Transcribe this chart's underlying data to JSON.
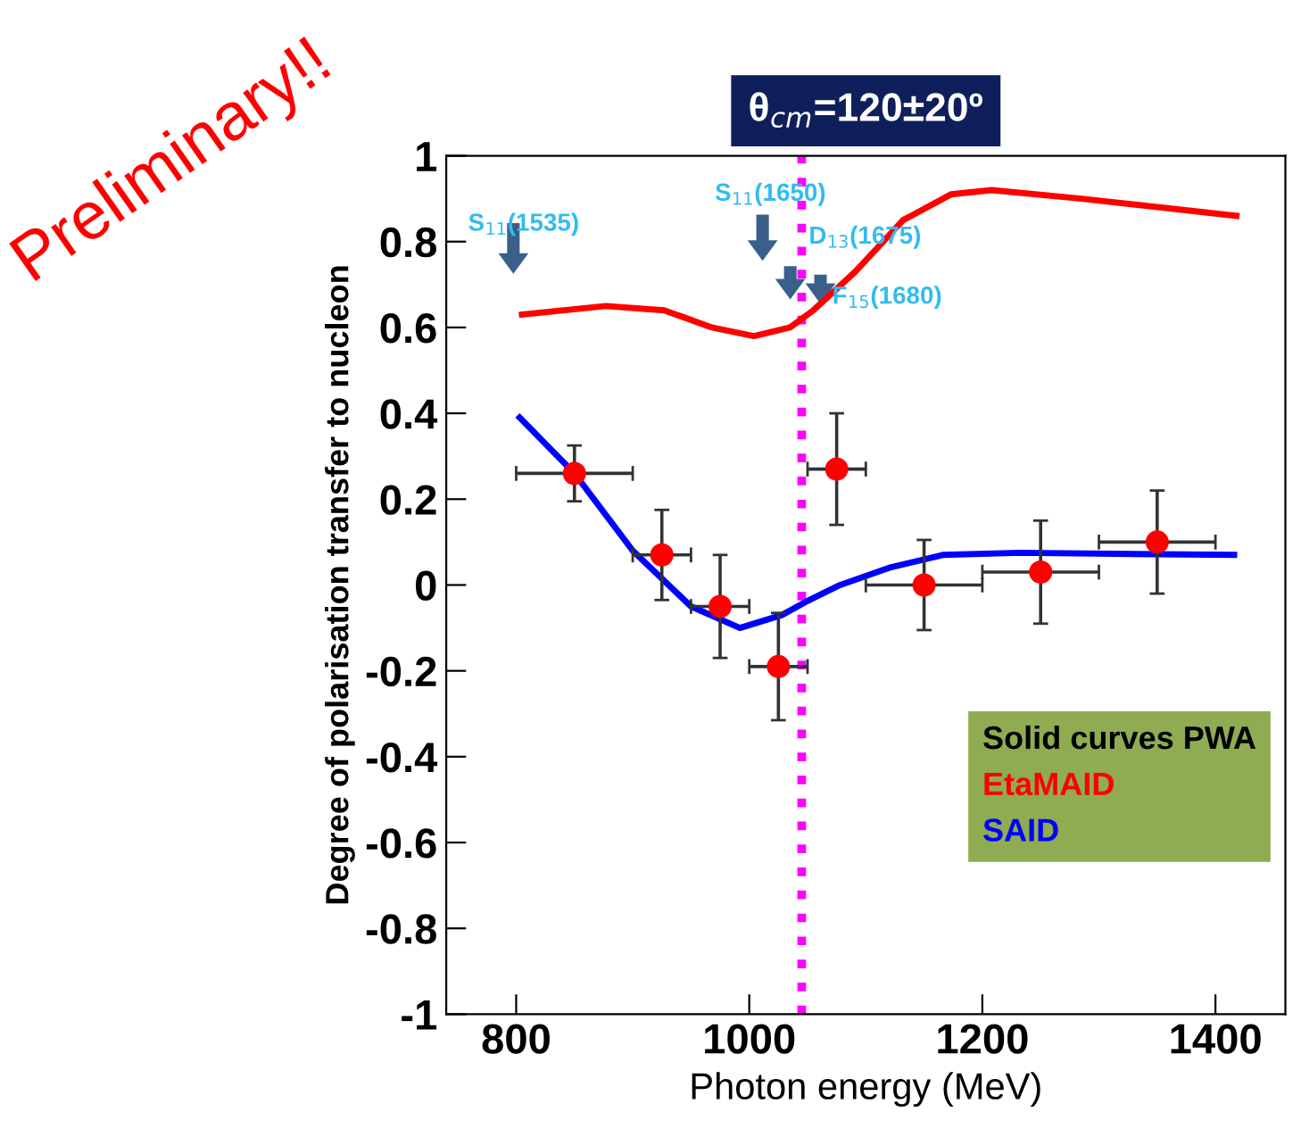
{
  "chart_data": {
    "type": "line",
    "title": "θ$_{cm}$=120±20º",
    "xlabel": "Photon energy (MeV)",
    "ylabel": "Degree of polarisation transfer to nucleon",
    "legend_title": "Solid curves PWA",
    "xlim": [
      740,
      1460
    ],
    "xticks": [
      800,
      1000,
      1200,
      1400
    ],
    "ylim": [
      -1,
      1
    ],
    "yticks": [
      -1,
      -0.8,
      -0.6,
      -0.4,
      -0.2,
      0,
      0.2,
      0.4,
      0.6,
      0.8,
      1
    ],
    "grid": false,
    "legend": "bottom right",
    "series": [
      {
        "name": "EtaMAID",
        "color": "#ff0000",
        "x": [
          805,
          877,
          927,
          968,
          1004,
          1035,
          1055,
          1091,
          1132,
          1173,
          1208,
          1285,
          1418
        ],
        "values": [
          0.63,
          0.65,
          0.64,
          0.6,
          0.58,
          0.6,
          0.64,
          0.73,
          0.85,
          0.91,
          0.92,
          0.9,
          0.86
        ]
      },
      {
        "name": "SAID",
        "color": "#0000ff",
        "x": [
          803,
          850,
          900,
          950,
          992,
          1028,
          1048,
          1078,
          1120,
          1166,
          1232,
          1416
        ],
        "values": [
          0.39,
          0.26,
          0.08,
          -0.05,
          -0.1,
          -0.07,
          -0.04,
          0.0,
          0.04,
          0.07,
          0.075,
          0.07
        ]
      },
      {
        "type": "scatter",
        "color": "#ff0000",
        "marker": "circle",
        "x": [
          850,
          925,
          975,
          1025,
          1075,
          1150,
          1250,
          1350
        ],
        "values": [
          0.26,
          0.07,
          -0.05,
          -0.19,
          0.27,
          0.0,
          0.03,
          0.1
        ],
        "errors": [
          0.065,
          0.105,
          0.12,
          0.125,
          0.13,
          0.105,
          0.12,
          0.12
        ],
        "xerrors": [
          50,
          25,
          25,
          25,
          25,
          50,
          50,
          50
        ]
      }
    ],
    "ref_lines": [
      {
        "axis": "x",
        "value": 1045,
        "color": "#ff00ff",
        "line_style": "dotted"
      }
    ],
    "annotations": [
      "S$_{11}$(1535)",
      "S$_{11}$(1650)",
      "D$_{13}$(1675)",
      "F$_{15}$(1680)",
      "Preliminary!!"
    ]
  }
}
